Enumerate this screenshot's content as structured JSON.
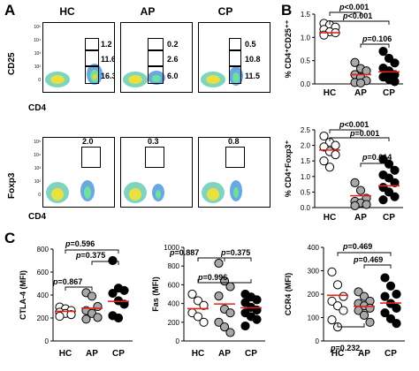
{
  "panels": {
    "A": "A",
    "B": "B",
    "C": "C"
  },
  "flow": {
    "conditions": [
      "HC",
      "AP",
      "CP"
    ],
    "top_ylabel": "CD25",
    "top_xlabel": "CD4",
    "bottom_ylabel": "Foxp3",
    "bottom_xlabel": "CD4",
    "top_gates": [
      [
        "1.2",
        "11.6",
        "16.3"
      ],
      [
        "0.2",
        "2.6",
        "6.0"
      ],
      [
        "0.5",
        "10.8",
        "11.5"
      ]
    ],
    "bottom_gates": [
      "2.0",
      "0.3",
      "0.8"
    ],
    "ticks": [
      "10⁵",
      "10⁴",
      "10³",
      "10²",
      "0"
    ]
  },
  "chart_data": [
    {
      "type": "scatter",
      "ylabel": "% CD4⁺CD25⁺⁺",
      "categories": [
        "HC",
        "AP",
        "CP"
      ],
      "ylim": [
        0,
        1.5
      ],
      "yticks": [
        "0.0",
        "0.5",
        "1.0",
        "1.5"
      ],
      "series": [
        {
          "category": "HC",
          "values": [
            1.3,
            1.27,
            1.22,
            1.17,
            1.12,
            1.1,
            1.05
          ]
        },
        {
          "category": "AP",
          "values": [
            0.46,
            0.33,
            0.28,
            0.2,
            0.14,
            0.07,
            0.03,
            0.02
          ]
        },
        {
          "category": "CP",
          "values": [
            0.7,
            0.55,
            0.45,
            0.34,
            0.28,
            0.2,
            0.15,
            0.1,
            0.05
          ]
        }
      ],
      "means": [
        1.1,
        0.2,
        0.26
      ],
      "annotations": [
        "p<0.001",
        "p<0.001",
        "p=0.106"
      ]
    },
    {
      "type": "scatter",
      "ylabel": "% CD4⁺Foxp3⁺",
      "categories": [
        "HC",
        "AP",
        "CP"
      ],
      "ylim": [
        0,
        2.5
      ],
      "yticks": [
        "0.0",
        "0.5",
        "1.0",
        "1.5",
        "2.0",
        "2.5"
      ],
      "series": [
        {
          "category": "HC",
          "values": [
            2.3,
            2.1,
            2.0,
            1.95,
            1.8,
            1.7,
            1.5,
            1.3
          ]
        },
        {
          "category": "AP",
          "values": [
            0.8,
            0.55,
            0.3,
            0.2,
            0.15,
            0.1,
            0.06
          ]
        },
        {
          "category": "CP",
          "values": [
            1.55,
            1.4,
            1.2,
            1.05,
            0.95,
            0.8,
            0.65,
            0.5,
            0.35,
            0.25
          ]
        }
      ],
      "means": [
        1.85,
        0.38,
        0.7
      ],
      "annotations": [
        "p<0.001",
        "p=0.001",
        "p=0.014"
      ]
    },
    {
      "type": "scatter",
      "ylabel": "CTLA-4 (MFI)",
      "categories": [
        "HC",
        "AP",
        "CP"
      ],
      "ylim": [
        0,
        800
      ],
      "yticks": [
        "0",
        "200",
        "400",
        "600",
        "800"
      ],
      "series": [
        {
          "category": "HC",
          "values": [
            295,
            280,
            265,
            250,
            240,
            230,
            215
          ]
        },
        {
          "category": "AP",
          "values": [
            420,
            390,
            300,
            265,
            240,
            205,
            190
          ]
        },
        {
          "category": "CP",
          "values": [
            700,
            460,
            440,
            415,
            350,
            320,
            220,
            200
          ]
        }
      ],
      "means": [
        258,
        285,
        345
      ],
      "annotations": [
        "p=0.596",
        "p=0.375",
        "p=0.867"
      ]
    },
    {
      "type": "scatter",
      "ylabel": "Fas (MFI)",
      "categories": [
        "HC",
        "AP",
        "CP"
      ],
      "ylim": [
        0,
        1000
      ],
      "yticks": [
        "0",
        "200",
        "400",
        "600",
        "800",
        "1000"
      ],
      "series": [
        {
          "category": "HC",
          "values": [
            500,
            430,
            380,
            300,
            260,
            200
          ]
        },
        {
          "category": "AP",
          "values": [
            830,
            640,
            580,
            480,
            340,
            300,
            200,
            150,
            90
          ]
        },
        {
          "category": "CP",
          "values": [
            500,
            470,
            440,
            410,
            360,
            330,
            300,
            260,
            230,
            160
          ]
        }
      ],
      "means": [
        345,
        395,
        355
      ],
      "annotations": [
        "p=0.887",
        "p=0.375",
        "p=0.996"
      ]
    },
    {
      "type": "scatter",
      "ylabel": "CCR4 (MFI)",
      "categories": [
        "HC",
        "AP",
        "CP"
      ],
      "ylim": [
        0,
        400
      ],
      "yticks": [
        "0",
        "100",
        "200",
        "300",
        "400"
      ],
      "series": [
        {
          "category": "HC",
          "values": [
            295,
            240,
            190,
            170,
            150,
            130,
            90,
            60
          ]
        },
        {
          "category": "AP",
          "values": [
            210,
            190,
            170,
            160,
            150,
            140,
            130,
            110,
            80
          ]
        },
        {
          "category": "CP",
          "values": [
            270,
            235,
            200,
            190,
            160,
            140,
            120,
            95,
            75
          ]
        }
      ],
      "means": [
        195,
        148,
        162
      ],
      "annotations": [
        "p=0.469",
        "p=0.469",
        "p=0.232"
      ]
    }
  ]
}
